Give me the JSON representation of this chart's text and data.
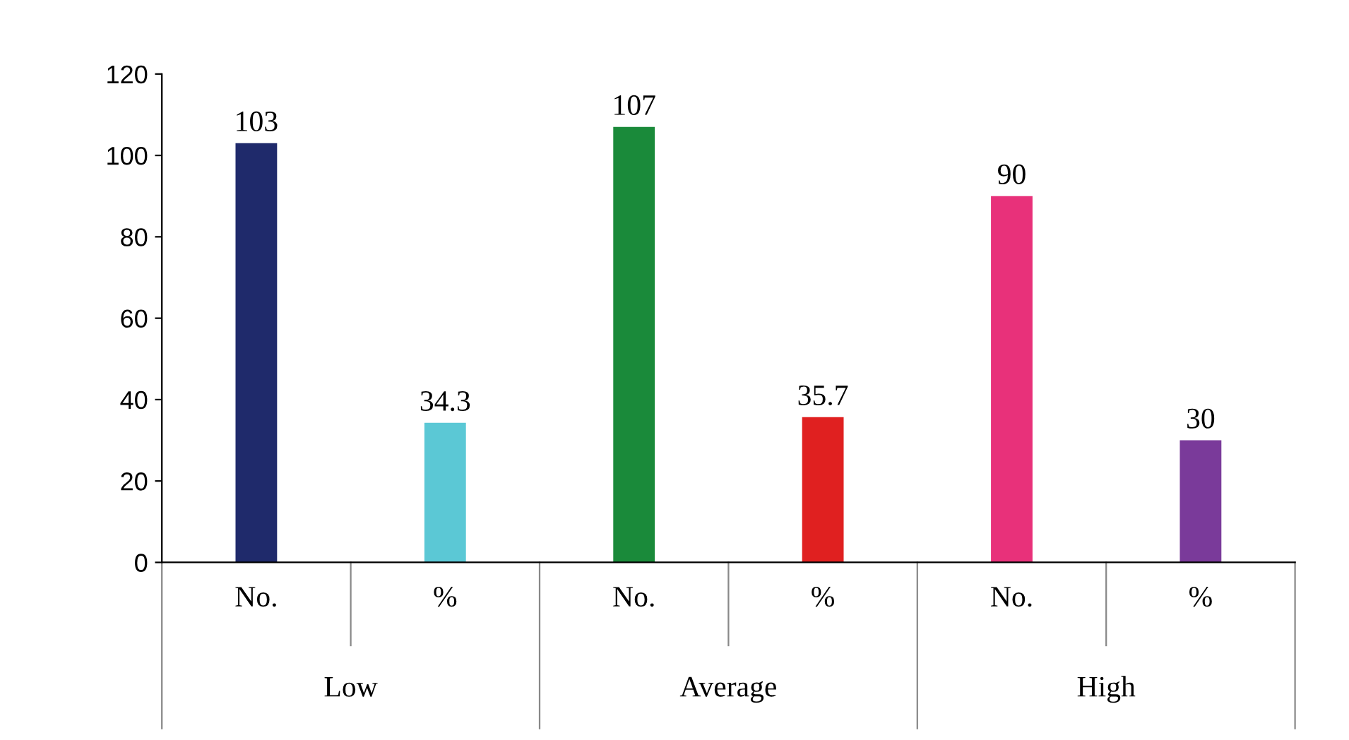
{
  "chart_data": {
    "type": "bar",
    "categories": [
      "No.",
      "%",
      "No.",
      "%",
      "No.",
      "%"
    ],
    "values": [
      103,
      34.3,
      107,
      35.7,
      90,
      30
    ],
    "colors": [
      "#1f2a6b",
      "#5bc8d5",
      "#1a8a3a",
      "#e02020",
      "#e8317a",
      "#7a3a9a"
    ],
    "annotations": [
      "Low",
      "Average",
      "High"
    ],
    "ylim": [
      0,
      120
    ],
    "yticks": [
      0,
      20,
      40,
      60,
      80,
      100,
      120
    ],
    "data_labels": true,
    "grid": false,
    "legend": false
  }
}
